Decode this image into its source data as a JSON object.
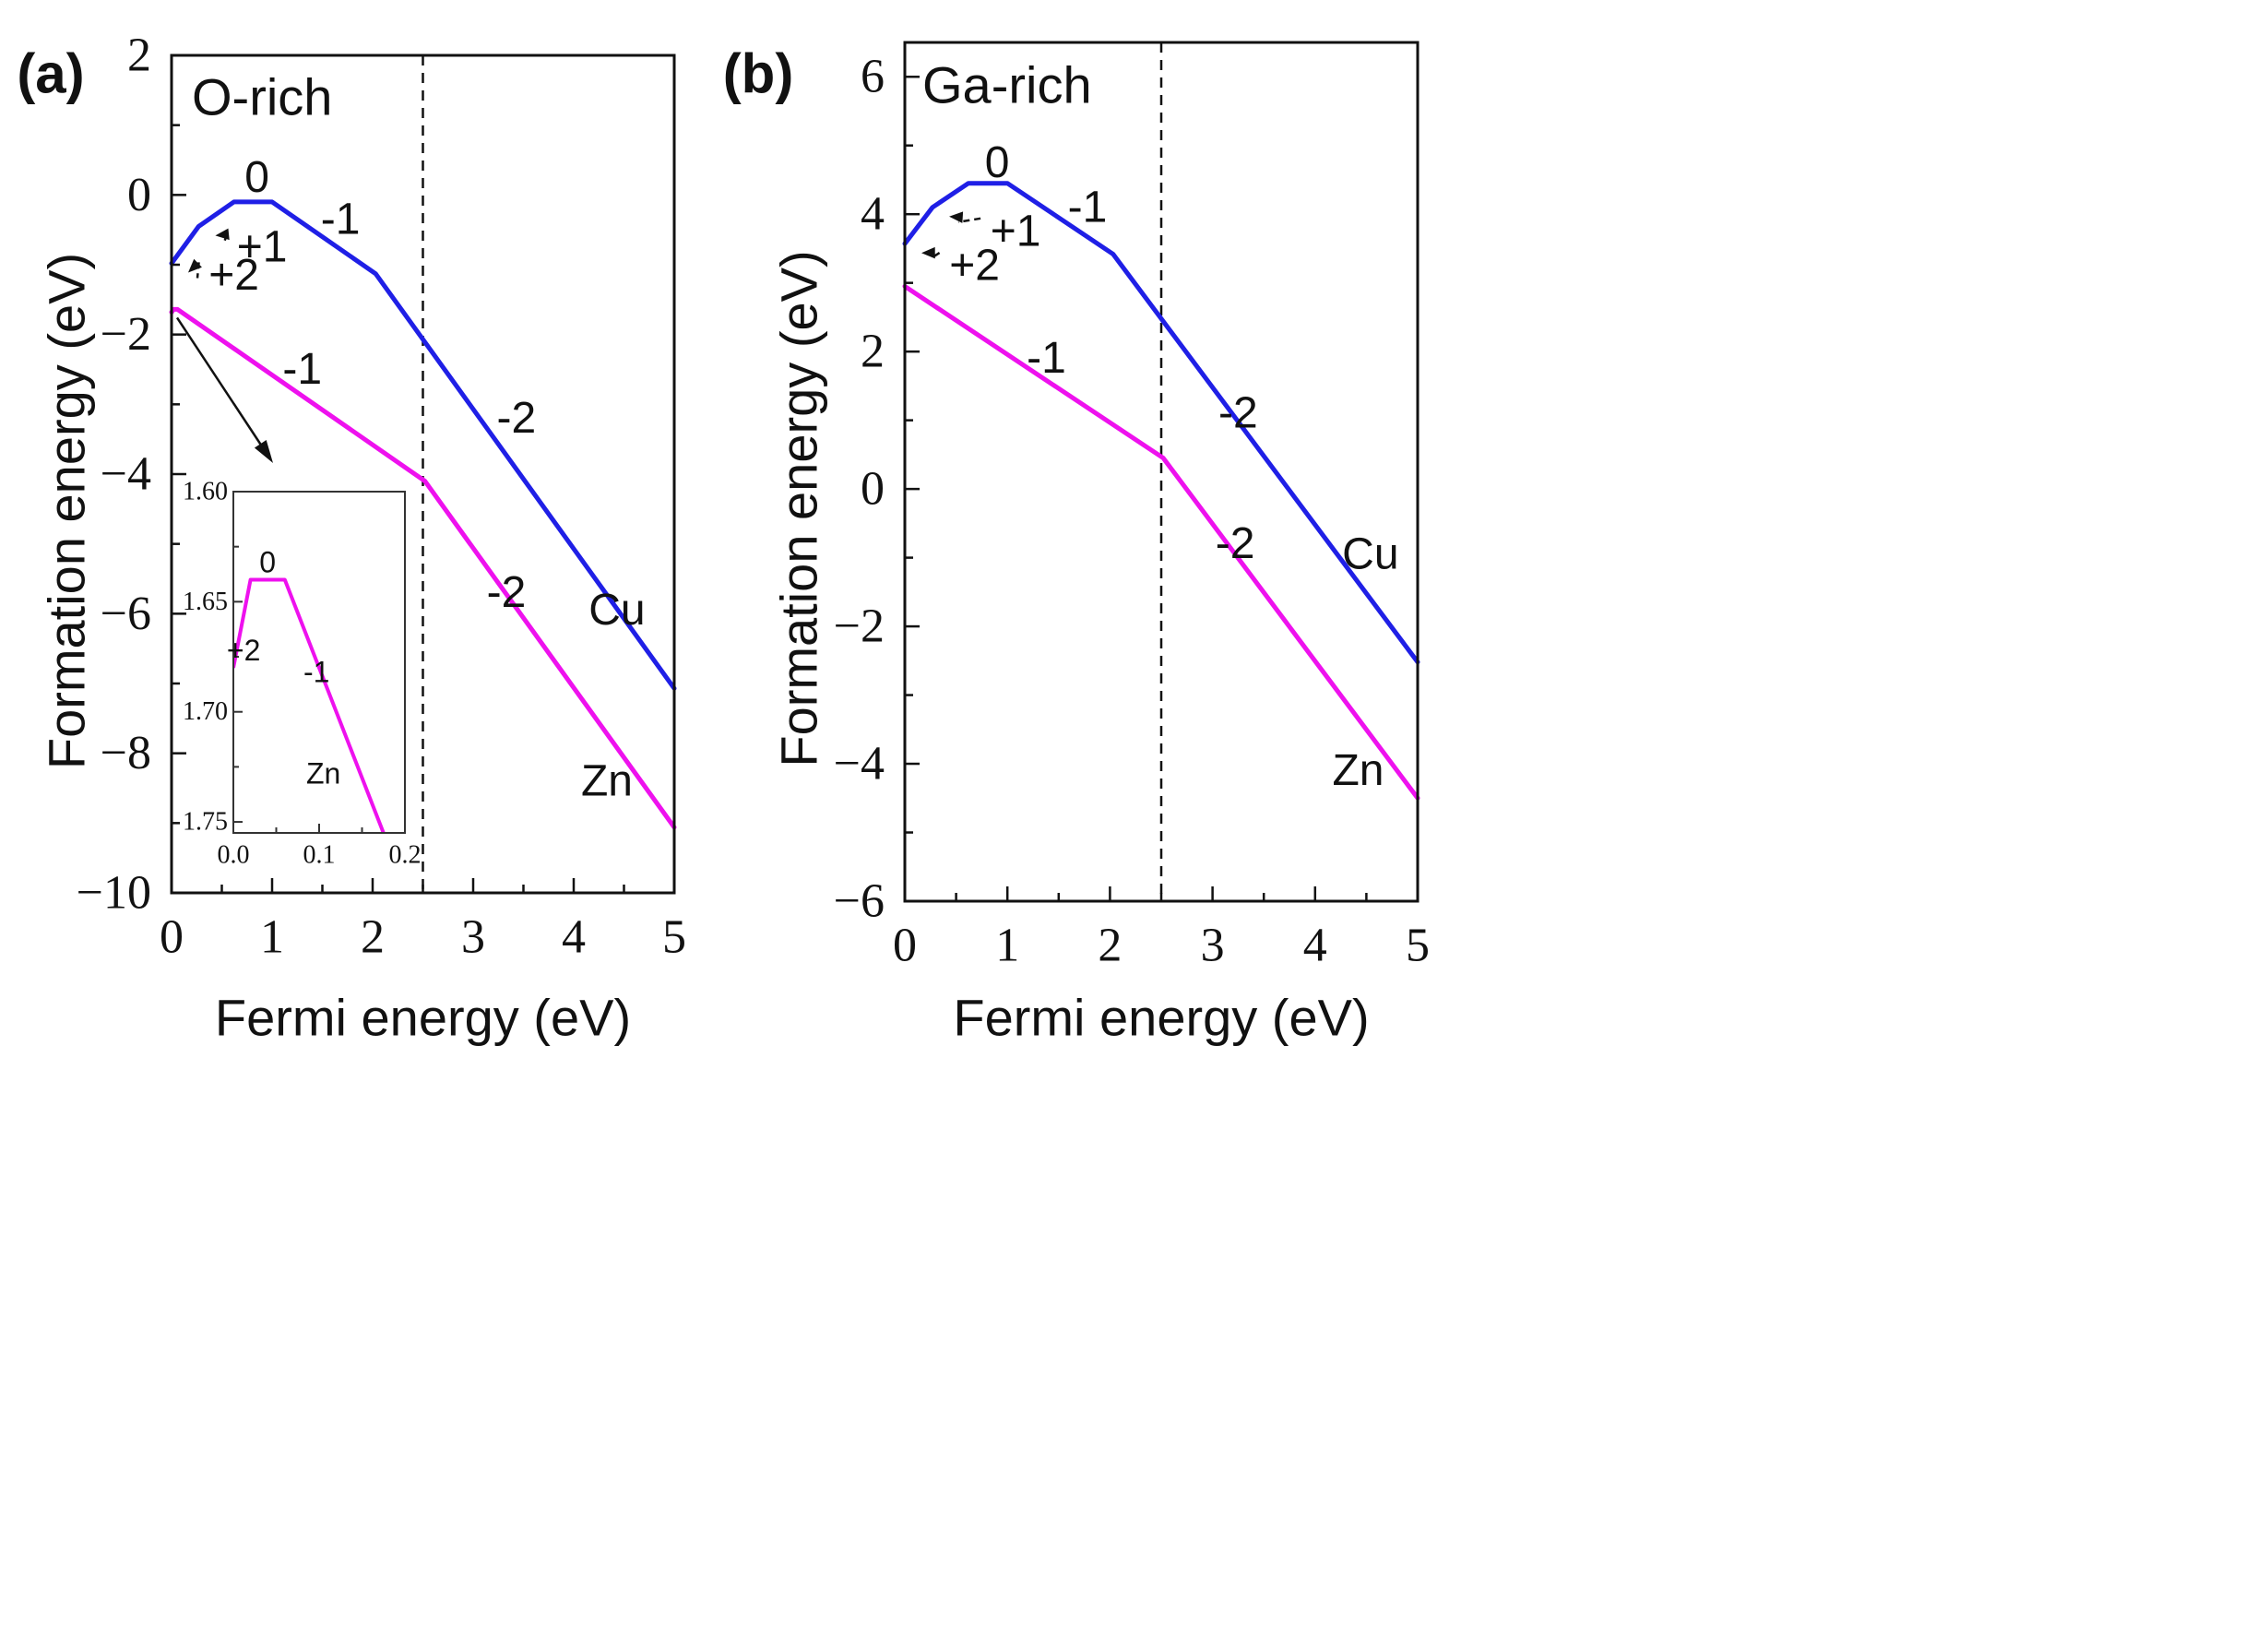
{
  "chart_data": [
    {
      "type": "line",
      "panel_label": "(a)",
      "title": "O-rich",
      "xlabel": "Fermi energy (eV)",
      "ylabel": "Formation energy (eV)",
      "xlim": [
        0,
        5
      ],
      "ylim": [
        -10,
        2
      ],
      "xticks": [
        0,
        1,
        2,
        3,
        4,
        5
      ],
      "xtick_labels": [
        "0",
        "1",
        "2",
        "3",
        "4",
        "5"
      ],
      "yticks": [
        -10,
        -8,
        -6,
        -4,
        -2,
        0,
        2
      ],
      "ytick_labels": [
        "−10",
        "−8",
        "−6",
        "−4",
        "−2",
        "0",
        "2"
      ],
      "dashed_vline_x": 2.5,
      "series": [
        {
          "name": "Cu",
          "color": "#1f1fe6",
          "x": [
            0,
            0.27,
            0.62,
            1.0,
            2.03,
            5.0
          ],
          "y": [
            -0.98,
            -0.45,
            -0.1,
            -0.1,
            -1.13,
            -7.07
          ]
        },
        {
          "name": "Zn",
          "color": "#ee11ee",
          "x": [
            0,
            0.02,
            0.06,
            2.52,
            5.0
          ],
          "y": [
            -1.68,
            -1.64,
            -1.64,
            -4.1,
            -9.06
          ]
        }
      ],
      "annotations": [
        {
          "text": "0",
          "x": 0.85,
          "y": 0.25
        },
        {
          "text": "-1",
          "x": 1.68,
          "y": -0.35
        },
        {
          "text": "+1",
          "x": 0.9,
          "y": -0.75
        },
        {
          "text": "+2",
          "x": 0.62,
          "y": -1.15
        },
        {
          "text": "-1",
          "x": 1.3,
          "y": -2.5
        },
        {
          "text": "-2",
          "x": 3.43,
          "y": -3.2
        },
        {
          "text": "-2",
          "x": 3.33,
          "y": -5.7
        },
        {
          "text": "Cu",
          "x": 4.43,
          "y": -5.95
        },
        {
          "text": "Zn",
          "x": 4.33,
          "y": -8.4
        }
      ],
      "inset": {
        "type": "line",
        "xlim": [
          0,
          0.2
        ],
        "ylim": [
          1.6,
          1.755
        ],
        "y_inverted": true,
        "xticks": [
          0.0,
          0.1,
          0.2
        ],
        "xtick_labels": [
          "0.0",
          "0.1",
          "0.2"
        ],
        "yticks": [
          1.6,
          1.65,
          1.7,
          1.75
        ],
        "ytick_labels": [
          "1.60",
          "1.65",
          "1.70",
          "1.75"
        ],
        "series": [
          {
            "name": "Zn",
            "color": "#ee11ee",
            "x": [
              0,
              0.02,
              0.06,
              0.18
            ],
            "y": [
              1.68,
              1.64,
              1.64,
              1.76
            ]
          }
        ],
        "annotations": [
          {
            "text": "0",
            "x": 0.04,
            "y": 1.632
          },
          {
            "text": "+2",
            "x": 0.012,
            "y": 1.672
          },
          {
            "text": "-1",
            "x": 0.097,
            "y": 1.682
          },
          {
            "text": "Zn",
            "x": 0.105,
            "y": 1.728
          }
        ]
      }
    },
    {
      "type": "line",
      "panel_label": "(b)",
      "title": "Ga-rich",
      "xlabel": "Fermi energy (eV)",
      "ylabel": "Formation energy (eV)",
      "xlim": [
        0,
        5
      ],
      "ylim": [
        -6,
        6.5
      ],
      "xticks": [
        0,
        1,
        2,
        3,
        4,
        5
      ],
      "xtick_labels": [
        "0",
        "1",
        "2",
        "3",
        "4",
        "5"
      ],
      "yticks": [
        -6,
        -4,
        -2,
        0,
        2,
        4,
        6
      ],
      "ytick_labels": [
        "−6",
        "−4",
        "−2",
        "0",
        "2",
        "4",
        "6"
      ],
      "dashed_vline_x": 2.5,
      "series": [
        {
          "name": "Cu",
          "color": "#1f1fe6",
          "x": [
            0,
            0.27,
            0.62,
            1.0,
            2.03,
            5.0
          ],
          "y": [
            3.57,
            4.1,
            4.45,
            4.45,
            3.42,
            -2.52
          ]
        },
        {
          "name": "Zn",
          "color": "#ee11ee",
          "x": [
            0,
            2.52,
            5.0
          ],
          "y": [
            2.95,
            0.45,
            -4.5
          ]
        }
      ],
      "annotations": [
        {
          "text": "0",
          "x": 0.9,
          "y": 4.75
        },
        {
          "text": "-1",
          "x": 1.78,
          "y": 4.1
        },
        {
          "text": "+1",
          "x": 1.08,
          "y": 3.75
        },
        {
          "text": "+2",
          "x": 0.68,
          "y": 3.25
        },
        {
          "text": "-1",
          "x": 1.38,
          "y": 1.9
        },
        {
          "text": "-2",
          "x": 3.25,
          "y": 1.1
        },
        {
          "text": "-2",
          "x": 3.22,
          "y": -0.8
        },
        {
          "text": "Cu",
          "x": 4.54,
          "y": -0.95
        },
        {
          "text": "Zn",
          "x": 4.42,
          "y": -4.1
        }
      ]
    }
  ]
}
